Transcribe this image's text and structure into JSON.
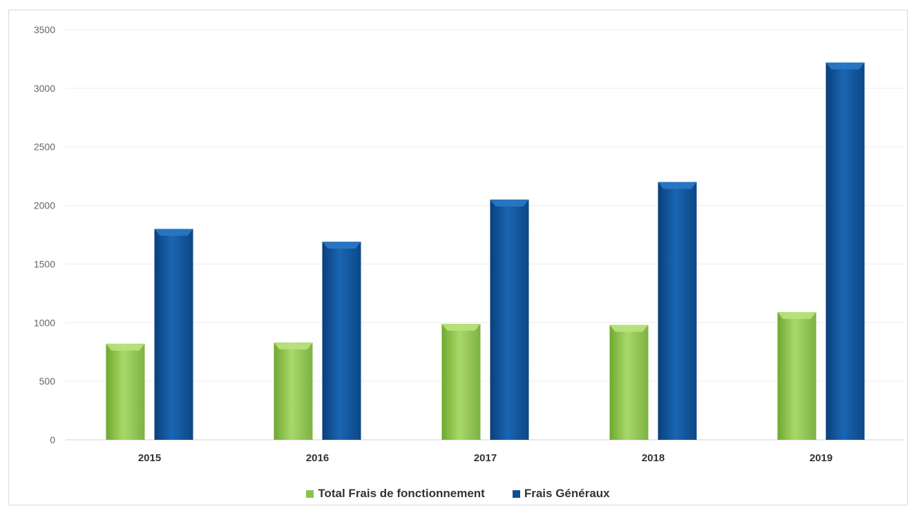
{
  "chart_data": {
    "type": "bar",
    "categories": [
      "2015",
      "2016",
      "2017",
      "2018",
      "2019"
    ],
    "series": [
      {
        "name": "Total Frais de fonctionnement",
        "values": [
          820,
          830,
          990,
          980,
          1090
        ],
        "color": "#8bc34a"
      },
      {
        "name": "Frais Généraux",
        "values": [
          1800,
          1690,
          2050,
          2200,
          3220
        ],
        "color": "#0d4f94"
      }
    ],
    "ylim": [
      0,
      3500
    ],
    "yticks": [
      "0",
      "500",
      "1000",
      "1500",
      "2000",
      "2500",
      "3000",
      "3500"
    ],
    "grid": true,
    "legend_position": "bottom"
  }
}
